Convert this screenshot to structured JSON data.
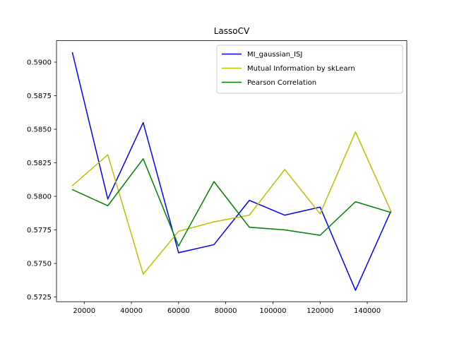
{
  "chart_data": {
    "type": "line",
    "title": "LassoCV",
    "xlabel": "",
    "ylabel": "",
    "xlim": [
      8250,
      156750
    ],
    "ylim": [
      0.57215,
      0.5916
    ],
    "xticks": [
      20000,
      40000,
      60000,
      80000,
      100000,
      120000,
      140000
    ],
    "xtick_labels": [
      "20000",
      "40000",
      "60000",
      "80000",
      "100000",
      "120000",
      "140000"
    ],
    "yticks": [
      0.5725,
      0.575,
      0.5775,
      0.58,
      0.5825,
      0.585,
      0.5875,
      0.59
    ],
    "ytick_labels": [
      "0.5725",
      "0.5750",
      "0.5775",
      "0.5800",
      "0.5825",
      "0.5850",
      "0.5875",
      "0.5900"
    ],
    "grid": false,
    "legend_position": "top-right",
    "x": [
      15000,
      30000,
      45000,
      60000,
      75000,
      90000,
      105000,
      120000,
      135000,
      150000
    ],
    "series": [
      {
        "name": "MI_gaussian_ISJ",
        "color": "#0000ff",
        "values": [
          0.5907,
          0.5798,
          0.5855,
          0.5758,
          0.5764,
          0.5797,
          0.5786,
          0.5792,
          0.573,
          0.5789
        ]
      },
      {
        "name": "Mutual Information by skLearn",
        "color": "#bfbf00",
        "values": [
          0.5808,
          0.5831,
          0.5742,
          0.5774,
          0.5781,
          0.5786,
          0.582,
          0.5787,
          0.5848,
          0.5789
        ]
      },
      {
        "name": "Pearson Correlation",
        "color": "#008000",
        "values": [
          0.5805,
          0.5793,
          0.5828,
          0.5763,
          0.5811,
          0.5777,
          0.5775,
          0.5771,
          0.5796,
          0.5788
        ]
      }
    ]
  }
}
